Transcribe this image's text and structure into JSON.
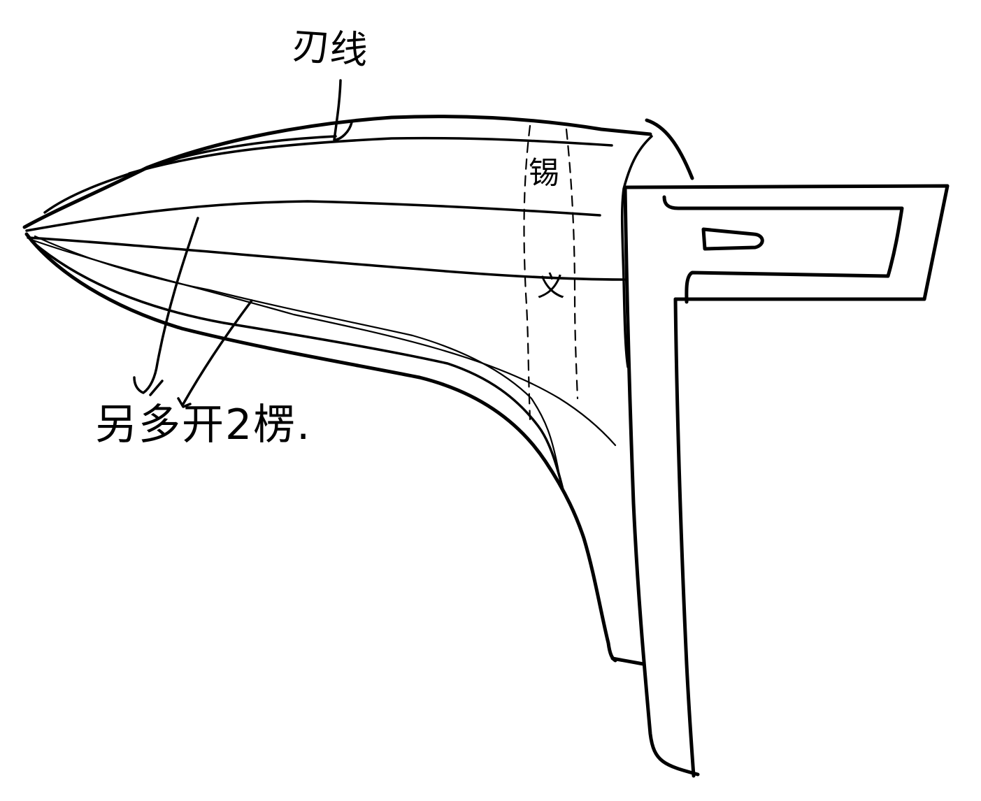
{
  "annotations": {
    "blade_line": "刃线",
    "ridges": "另多开2楞.",
    "fuller_top": "锡",
    "fuller_bottom": "义"
  },
  "colors": {
    "ink": "#000000",
    "paper": "#ffffff"
  }
}
